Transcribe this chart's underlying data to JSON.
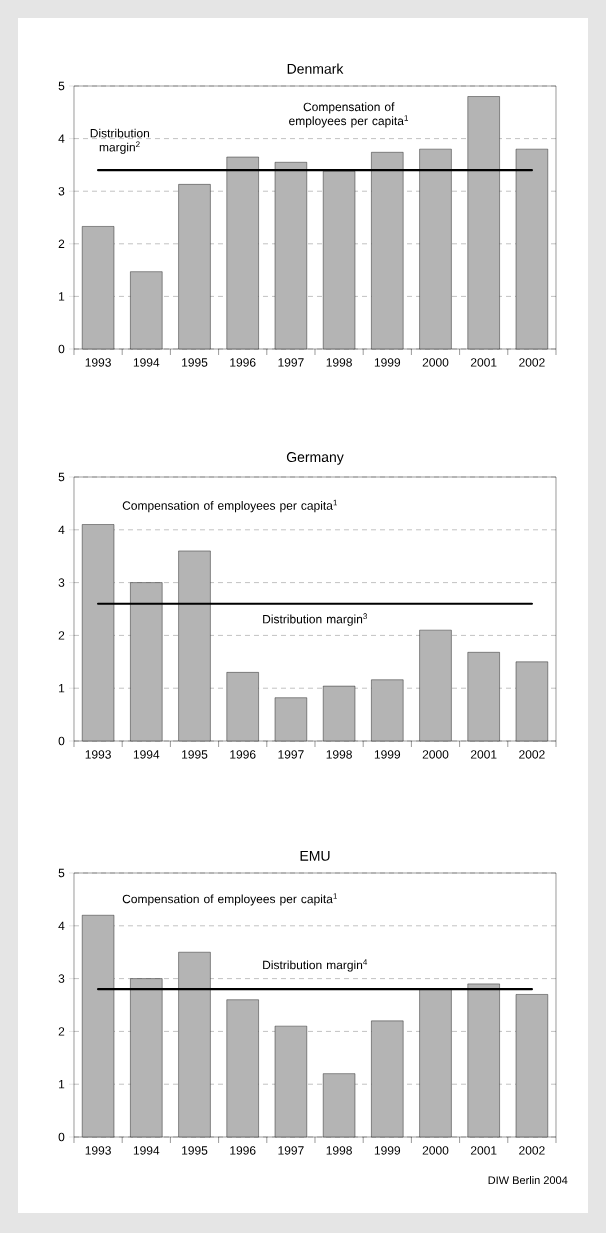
{
  "chart_data": [
    {
      "type": "bar",
      "title": "Denmark",
      "categories": [
        "1993",
        "1994",
        "1995",
        "1996",
        "1997",
        "1998",
        "1999",
        "2000",
        "2001",
        "2002"
      ],
      "series": [
        {
          "name": "Compensation of employees per capita$^{1}$",
          "color": "#b4b4b4",
          "values": [
            2.33,
            1.47,
            3.13,
            3.65,
            3.55,
            3.38,
            3.74,
            3.8,
            4.8,
            3.8
          ]
        }
      ],
      "ref_lines": [
        {
          "axis": "y",
          "value": 3.4,
          "label": "Distribution margin$^{2}$"
        }
      ],
      "ylim": [
        0,
        5
      ],
      "yticks": [
        0,
        1,
        2,
        3,
        4,
        5
      ],
      "grid": "y"
    },
    {
      "type": "bar",
      "title": "Germany",
      "categories": [
        "1993",
        "1994",
        "1995",
        "1996",
        "1997",
        "1998",
        "1999",
        "2000",
        "2001",
        "2002"
      ],
      "series": [
        {
          "name": "Compensation of employees per capita$^{1}$",
          "color": "#b4b4b4",
          "values": [
            4.1,
            3.0,
            3.6,
            1.3,
            0.82,
            1.04,
            1.16,
            2.1,
            1.68,
            1.5
          ]
        }
      ],
      "ref_lines": [
        {
          "axis": "y",
          "value": 2.6,
          "label": "Distribution margin$^{3}$"
        }
      ],
      "ylim": [
        0,
        5
      ],
      "yticks": [
        0,
        1,
        2,
        3,
        4,
        5
      ],
      "grid": "y"
    },
    {
      "type": "bar",
      "title": "EMU",
      "categories": [
        "1993",
        "1994",
        "1995",
        "1996",
        "1997",
        "1998",
        "1999",
        "2000",
        "2001",
        "2002"
      ],
      "series": [
        {
          "name": "Compensation of employees per capita$^{1}$",
          "color": "#b4b4b4",
          "values": [
            4.2,
            3.0,
            3.5,
            2.6,
            2.1,
            1.2,
            2.2,
            2.8,
            2.9,
            2.7
          ]
        }
      ],
      "ref_lines": [
        {
          "axis": "y",
          "value": 2.8,
          "label": "Distribution margin$^{4}$"
        }
      ],
      "ylim": [
        0,
        5
      ],
      "yticks": [
        0,
        1,
        2,
        3,
        4,
        5
      ],
      "grid": "y",
      "annotations": [
        "DIW Berlin 2004"
      ]
    }
  ]
}
